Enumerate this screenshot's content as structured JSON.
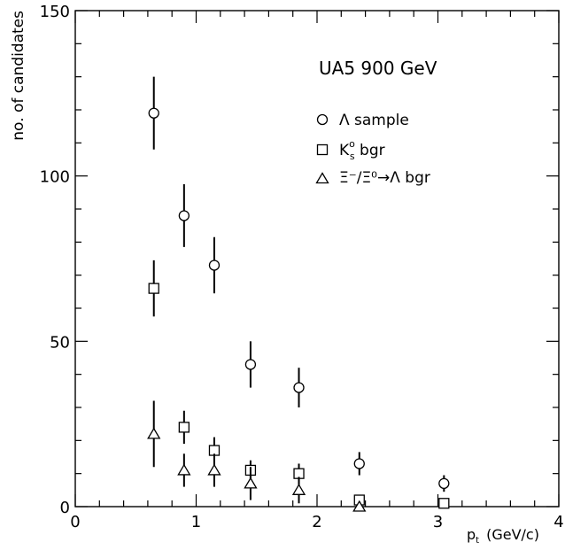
{
  "chart_data": {
    "type": "scatter",
    "title": "UA5 900 GeV",
    "xlabel": "p_t (GeV/c)",
    "xlabel_main": "p",
    "xlabel_sub": "t",
    "xlabel_unit": "(GeV/c)",
    "ylabel": "no. of candidates",
    "xlim": [
      0,
      4
    ],
    "ylim": [
      0,
      150
    ],
    "xticks": [
      0,
      1,
      2,
      3,
      4
    ],
    "xtick_labels": [
      "0",
      "1",
      "2",
      "3",
      "4"
    ],
    "yticks": [
      0,
      50,
      100,
      150
    ],
    "ytick_labels": [
      "0",
      "50",
      "100",
      "150"
    ],
    "legend_position": "upper-right",
    "legend": {
      "lambda": "Λ sample",
      "k0s_main": "K",
      "k0s_sup": "o",
      "k0s_sub": "s",
      "k0s_tail": " bgr",
      "xi": "Ξ⁻/Ξ⁰→Λ bgr"
    },
    "series": [
      {
        "name": "Λ sample",
        "marker": "circle",
        "points": [
          {
            "x": 0.65,
            "y": 119,
            "err": 11
          },
          {
            "x": 0.9,
            "y": 88,
            "err": 9.5
          },
          {
            "x": 1.15,
            "y": 73,
            "err": 8.5
          },
          {
            "x": 1.45,
            "y": 43,
            "err": 7
          },
          {
            "x": 1.85,
            "y": 36,
            "err": 6
          },
          {
            "x": 2.35,
            "y": 13,
            "err": 3.5
          },
          {
            "x": 3.05,
            "y": 7,
            "err": 2.5
          }
        ]
      },
      {
        "name": "K⁰s bgr",
        "marker": "square",
        "points": [
          {
            "x": 0.65,
            "y": 66,
            "err": 8.5
          },
          {
            "x": 0.9,
            "y": 24,
            "err": 5
          },
          {
            "x": 1.15,
            "y": 17,
            "err": 4
          },
          {
            "x": 1.45,
            "y": 11,
            "err": 3
          },
          {
            "x": 1.85,
            "y": 10,
            "err": 3
          },
          {
            "x": 2.35,
            "y": 2,
            "err": 1
          },
          {
            "x": 3.05,
            "y": 1,
            "err": 1
          }
        ]
      },
      {
        "name": "Ξ⁻/Ξ⁰→Λ bgr",
        "marker": "triangle",
        "points": [
          {
            "x": 0.65,
            "y": 22,
            "err": 10
          },
          {
            "x": 0.9,
            "y": 11,
            "err": 5
          },
          {
            "x": 1.15,
            "y": 11,
            "err": 5
          },
          {
            "x": 1.45,
            "y": 7,
            "err": 5
          },
          {
            "x": 1.85,
            "y": 5,
            "err": 4
          },
          {
            "x": 2.35,
            "y": 0,
            "err": 1
          }
        ]
      }
    ]
  }
}
